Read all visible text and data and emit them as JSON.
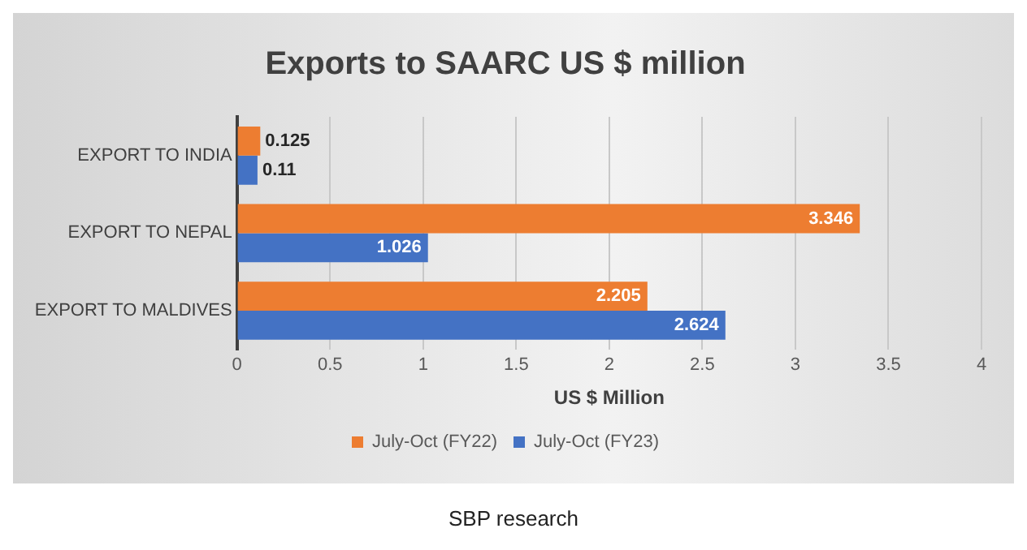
{
  "chart_data": {
    "type": "bar",
    "orientation": "horizontal",
    "title": "Exports to SAARC US $ million",
    "xlabel": "US $ Million",
    "categories": [
      "EXPORT TO INDIA",
      "EXPORT TO NEPAL",
      "EXPORT TO MALDIVES"
    ],
    "series": [
      {
        "name": "July-Oct (FY22)",
        "color": "#ed7d31",
        "values": [
          0.125,
          3.346,
          2.205
        ]
      },
      {
        "name": "July-Oct (FY23)",
        "color": "#4472c4",
        "values": [
          0.11,
          1.026,
          2.624
        ]
      }
    ],
    "xlim": [
      0,
      4
    ],
    "xticks": [
      0,
      0.5,
      1,
      1.5,
      2,
      2.5,
      3,
      3.5,
      4
    ],
    "grid": "x",
    "legend": "bottom",
    "data_labels": true,
    "annotations": [
      "SBP research"
    ]
  }
}
